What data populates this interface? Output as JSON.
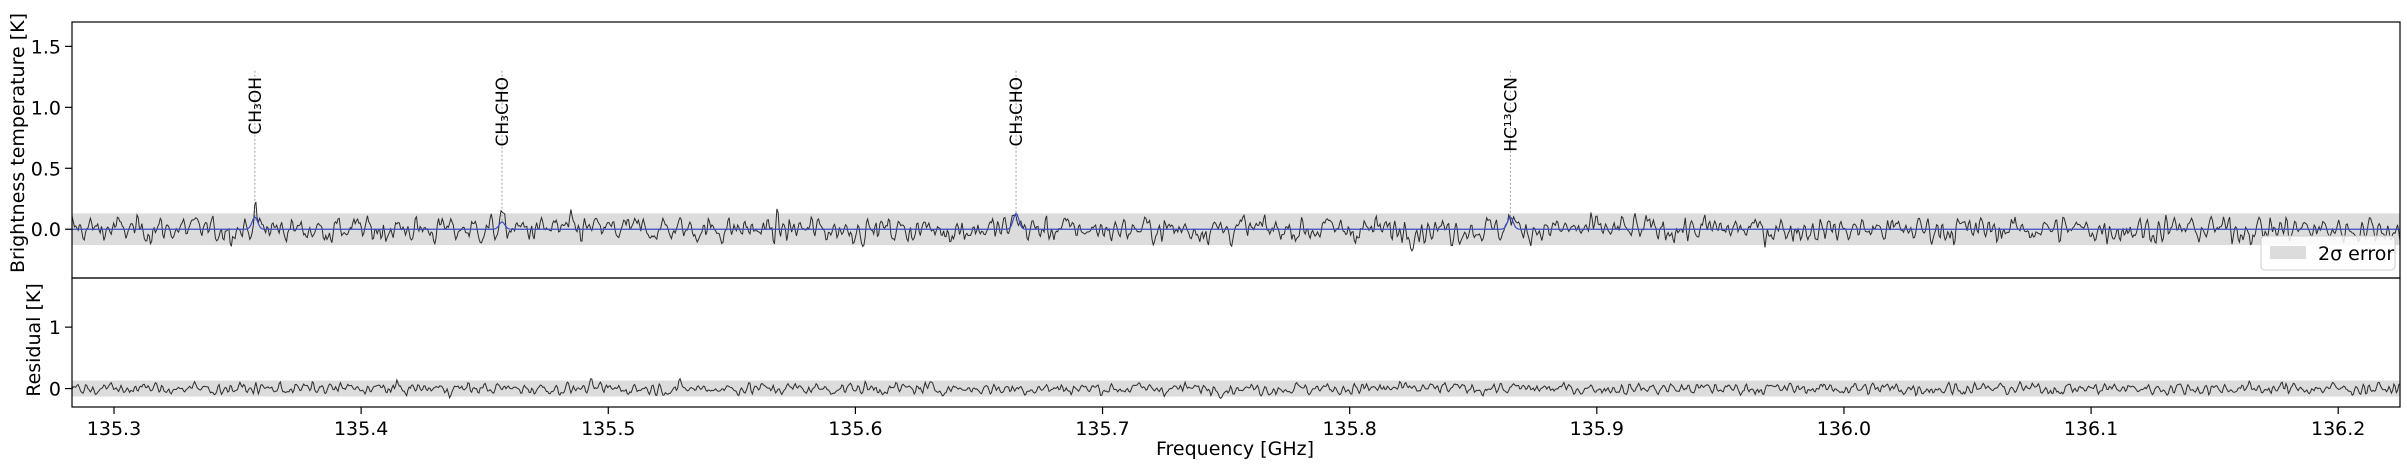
{
  "chart_data": {
    "type": "line",
    "x_range": [
      135.283,
      136.225
    ],
    "xlabel": "Frequency [GHz]",
    "x_ticks": [
      135.3,
      135.4,
      135.5,
      135.6,
      135.7,
      135.8,
      135.9,
      136.0,
      136.1,
      136.2
    ],
    "x_tick_labels": [
      "135.3",
      "135.4",
      "135.5",
      "135.6",
      "135.7",
      "135.8",
      "135.9",
      "136.0",
      "136.1",
      "136.2"
    ],
    "top_panel": {
      "ylabel": "Brightness temperature [K]",
      "ylim": [
        -0.4,
        1.7
      ],
      "y_ticks": [
        0.0,
        0.5,
        1.0,
        1.5
      ],
      "y_tick_labels": [
        "0.0",
        "0.5",
        "1.0",
        "1.5"
      ],
      "error_band": [
        -0.13,
        0.13
      ],
      "legend": {
        "label": "2σ error",
        "placement": "lower-right"
      },
      "line_markers": [
        {
          "freq": 135.357,
          "label": "CH₃OH"
        },
        {
          "freq": 135.457,
          "label": "CH₃CHO"
        },
        {
          "freq": 135.665,
          "label": "CH₃CHO"
        },
        {
          "freq": 135.865,
          "label": "HC¹³CCN"
        }
      ],
      "series": [
        {
          "role": "observed",
          "color": "#2b2b2b"
        },
        {
          "role": "model",
          "color": "#3b4bc8"
        }
      ],
      "model_peaks": [
        {
          "freq": 135.357,
          "height": 0.1
        },
        {
          "freq": 135.457,
          "height": 0.06
        },
        {
          "freq": 135.665,
          "height": 0.13
        },
        {
          "freq": 135.865,
          "height": 0.1
        }
      ],
      "noise_rms": 0.065
    },
    "bottom_panel": {
      "ylabel": "Residual [K]",
      "ylim": [
        -0.3,
        1.8
      ],
      "y_ticks": [
        0,
        1
      ],
      "y_tick_labels": [
        "0",
        "1"
      ],
      "error_band": [
        -0.13,
        0.13
      ],
      "series": [
        {
          "role": "residual",
          "color": "#2b2b2b"
        }
      ],
      "noise_rms": 0.06
    }
  }
}
